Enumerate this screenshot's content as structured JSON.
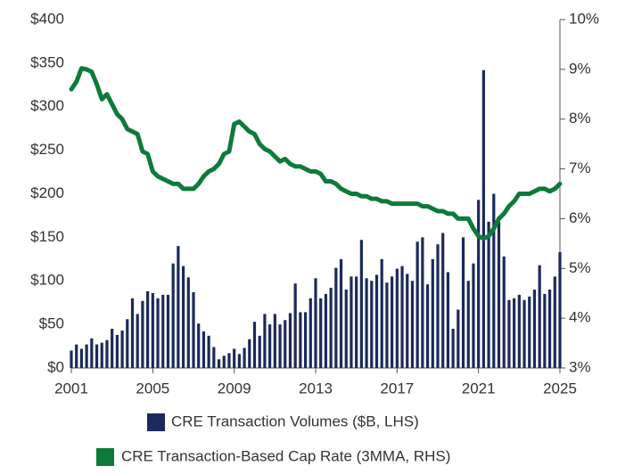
{
  "chart_data": {
    "type": "bar-line",
    "x": [
      2001,
      2001.25,
      2001.5,
      2001.75,
      2002,
      2002.25,
      2002.5,
      2002.75,
      2003,
      2003.25,
      2003.5,
      2003.75,
      2004,
      2004.25,
      2004.5,
      2004.75,
      2005,
      2005.25,
      2005.5,
      2005.75,
      2006,
      2006.25,
      2006.5,
      2006.75,
      2007,
      2007.25,
      2007.5,
      2007.75,
      2008,
      2008.25,
      2008.5,
      2008.75,
      2009,
      2009.25,
      2009.5,
      2009.75,
      2010,
      2010.25,
      2010.5,
      2010.75,
      2011,
      2011.25,
      2011.5,
      2011.75,
      2012,
      2012.25,
      2012.5,
      2012.75,
      2013,
      2013.25,
      2013.5,
      2013.75,
      2014,
      2014.25,
      2014.5,
      2014.75,
      2015,
      2015.25,
      2015.5,
      2015.75,
      2016,
      2016.25,
      2016.5,
      2016.75,
      2017,
      2017.25,
      2017.5,
      2017.75,
      2018,
      2018.25,
      2018.5,
      2018.75,
      2019,
      2019.25,
      2019.5,
      2019.75,
      2020,
      2020.25,
      2020.5,
      2020.75,
      2021,
      2021.25,
      2021.5,
      2021.75,
      2022,
      2022.25,
      2022.5,
      2022.75,
      2023,
      2023.25,
      2023.5,
      2023.75,
      2024,
      2024.25,
      2024.5,
      2024.75,
      2025
    ],
    "series": [
      {
        "name": "CRE Transaction Volumes ($B, LHS)",
        "color": "#1b2a5a",
        "type": "bar",
        "values": [
          20,
          27,
          22,
          27,
          34,
          27,
          29,
          32,
          45,
          38,
          43,
          56,
          80,
          62,
          77,
          88,
          86,
          80,
          84,
          84,
          120,
          140,
          117,
          104,
          87,
          51,
          42,
          37,
          24,
          10,
          14,
          17,
          22,
          16,
          23,
          33,
          53,
          37,
          62,
          50,
          62,
          50,
          55,
          63,
          97,
          64,
          64,
          80,
          103,
          80,
          85,
          92,
          115,
          125,
          90,
          105,
          105,
          147,
          103,
          100,
          107,
          125,
          98,
          105,
          114,
          117,
          108,
          100,
          145,
          150,
          96,
          125,
          142,
          155,
          110,
          45,
          67,
          150,
          100,
          120,
          193,
          342,
          168,
          200,
          168,
          128,
          78,
          80,
          84,
          78,
          82,
          90,
          118,
          85,
          90,
          105,
          133
        ]
      },
      {
        "name": "CRE Transaction-Based Cap Rate (3MMA, RHS)",
        "color": "#0e7a3a",
        "type": "line",
        "axis": "y2",
        "values": [
          8.6,
          8.75,
          9.02,
          9.0,
          8.95,
          8.7,
          8.4,
          8.5,
          8.3,
          8.1,
          8.0,
          7.8,
          7.75,
          7.7,
          7.35,
          7.3,
          6.95,
          6.85,
          6.8,
          6.75,
          6.7,
          6.7,
          6.6,
          6.6,
          6.6,
          6.7,
          6.85,
          6.95,
          7.0,
          7.1,
          7.3,
          7.35,
          7.9,
          7.95,
          7.85,
          7.75,
          7.7,
          7.5,
          7.4,
          7.35,
          7.25,
          7.15,
          7.2,
          7.1,
          7.05,
          7.05,
          7.0,
          6.95,
          6.95,
          6.9,
          6.75,
          6.75,
          6.7,
          6.6,
          6.55,
          6.5,
          6.5,
          6.45,
          6.45,
          6.4,
          6.4,
          6.35,
          6.35,
          6.3,
          6.3,
          6.3,
          6.3,
          6.3,
          6.3,
          6.25,
          6.25,
          6.2,
          6.15,
          6.15,
          6.1,
          6.1,
          6.0,
          6.0,
          6.0,
          5.8,
          5.65,
          5.6,
          5.65,
          5.8,
          6.0,
          6.1,
          6.25,
          6.35,
          6.5,
          6.5,
          6.5,
          6.55,
          6.6,
          6.6,
          6.55,
          6.6,
          6.7
        ]
      }
    ],
    "xlim": [
      2001,
      2025
    ],
    "xticks": [
      2001,
      2005,
      2009,
      2013,
      2017,
      2021,
      2025
    ],
    "ylim": [
      0,
      400
    ],
    "yticks": [
      {
        "value": 0,
        "label": "$0"
      },
      {
        "value": 50,
        "label": "$50"
      },
      {
        "value": 100,
        "label": "$100"
      },
      {
        "value": 150,
        "label": "$150"
      },
      {
        "value": 200,
        "label": "$200"
      },
      {
        "value": 250,
        "label": "$250"
      },
      {
        "value": 300,
        "label": "$300"
      },
      {
        "value": 350,
        "label": "$350"
      },
      {
        "value": 400,
        "label": "$400"
      }
    ],
    "y2lim": [
      3,
      10
    ],
    "y2ticks": [
      {
        "value": 3,
        "label": "3%"
      },
      {
        "value": 4,
        "label": "4%"
      },
      {
        "value": 5,
        "label": "5%"
      },
      {
        "value": 6,
        "label": "6%"
      },
      {
        "value": 7,
        "label": "7%"
      },
      {
        "value": 8,
        "label": "8%"
      },
      {
        "value": 9,
        "label": "9%"
      },
      {
        "value": 10,
        "label": "10%"
      }
    ],
    "grid": false
  }
}
